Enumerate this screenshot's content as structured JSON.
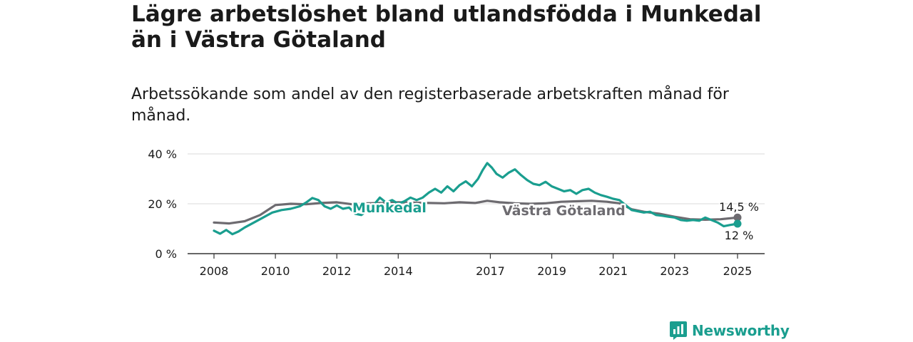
{
  "chart_data": {
    "type": "line",
    "title": "Lägre arbetslöshet bland utlandsfödda i Munkedal än i Västra Götaland",
    "subtitle": "Arbetssökande som andel av den registerbaserade arbetskraften månad för månad.",
    "y_unit": "%",
    "ylim": [
      0,
      40
    ],
    "y_ticks": [
      0,
      20,
      40
    ],
    "y_tick_labels": [
      "0 %",
      "20 %",
      "40 %"
    ],
    "xlim": [
      2008.0,
      2025.5
    ],
    "x_ticks": [
      2008,
      2010,
      2012,
      2014,
      2017,
      2019,
      2021,
      2023,
      2025
    ],
    "x_tick_labels": [
      "2008",
      "2010",
      "2012",
      "2014",
      "2017",
      "2019",
      "2021",
      "2023",
      "2025"
    ],
    "grid": "horizontal",
    "series": [
      {
        "name": "Västra Götaland",
        "color": "#6d6b70",
        "end_label": "14,5 %",
        "points": [
          [
            2008.0,
            12.5
          ],
          [
            2008.5,
            12.1
          ],
          [
            2009.0,
            13.0
          ],
          [
            2009.5,
            15.5
          ],
          [
            2010.0,
            19.5
          ],
          [
            2010.5,
            20.0
          ],
          [
            2011.0,
            19.8
          ],
          [
            2011.5,
            20.3
          ],
          [
            2012.0,
            20.6
          ],
          [
            2012.5,
            19.8
          ],
          [
            2013.0,
            20.2
          ],
          [
            2013.5,
            20.3
          ],
          [
            2014.0,
            20.6
          ],
          [
            2014.5,
            20.5
          ],
          [
            2015.0,
            20.3
          ],
          [
            2015.5,
            20.2
          ],
          [
            2016.0,
            20.6
          ],
          [
            2016.5,
            20.3
          ],
          [
            2016.9,
            21.2
          ],
          [
            2017.3,
            20.6
          ],
          [
            2017.8,
            20.2
          ],
          [
            2018.3,
            20.0
          ],
          [
            2018.8,
            20.2
          ],
          [
            2019.3,
            20.8
          ],
          [
            2019.8,
            21.0
          ],
          [
            2020.3,
            21.2
          ],
          [
            2020.8,
            20.8
          ],
          [
            2021.2,
            20.2
          ],
          [
            2021.6,
            17.8
          ],
          [
            2022.0,
            16.8
          ],
          [
            2022.5,
            16.0
          ],
          [
            2023.0,
            14.8
          ],
          [
            2023.5,
            13.8
          ],
          [
            2024.0,
            13.6
          ],
          [
            2024.5,
            13.8
          ],
          [
            2025.05,
            14.5
          ]
        ]
      },
      {
        "name": "Munkedal",
        "color": "#1a9e8f",
        "end_label": "12 %",
        "points": [
          [
            2008.0,
            9.2
          ],
          [
            2008.2,
            8.0
          ],
          [
            2008.4,
            9.5
          ],
          [
            2008.6,
            7.8
          ],
          [
            2008.8,
            8.9
          ],
          [
            2009.0,
            10.5
          ],
          [
            2009.3,
            12.5
          ],
          [
            2009.6,
            14.5
          ],
          [
            2009.9,
            16.5
          ],
          [
            2010.2,
            17.5
          ],
          [
            2010.5,
            18.0
          ],
          [
            2010.8,
            19.0
          ],
          [
            2011.0,
            20.5
          ],
          [
            2011.2,
            22.3
          ],
          [
            2011.4,
            21.5
          ],
          [
            2011.6,
            19.0
          ],
          [
            2011.8,
            18.0
          ],
          [
            2012.0,
            19.3
          ],
          [
            2012.2,
            18.0
          ],
          [
            2012.4,
            18.5
          ],
          [
            2012.6,
            16.0
          ],
          [
            2012.8,
            15.5
          ],
          [
            2013.0,
            17.5
          ],
          [
            2013.2,
            19.5
          ],
          [
            2013.4,
            22.5
          ],
          [
            2013.6,
            20.5
          ],
          [
            2013.8,
            21.5
          ],
          [
            2014.0,
            20.0
          ],
          [
            2014.2,
            21.0
          ],
          [
            2014.4,
            22.5
          ],
          [
            2014.6,
            21.5
          ],
          [
            2014.8,
            22.5
          ],
          [
            2015.0,
            24.5
          ],
          [
            2015.2,
            26.0
          ],
          [
            2015.4,
            24.5
          ],
          [
            2015.6,
            27.0
          ],
          [
            2015.8,
            25.0
          ],
          [
            2016.0,
            27.5
          ],
          [
            2016.2,
            29.0
          ],
          [
            2016.4,
            27.0
          ],
          [
            2016.6,
            30.0
          ],
          [
            2016.75,
            33.5
          ],
          [
            2016.9,
            36.3
          ],
          [
            2017.05,
            34.5
          ],
          [
            2017.2,
            32.0
          ],
          [
            2017.4,
            30.5
          ],
          [
            2017.6,
            32.5
          ],
          [
            2017.8,
            33.8
          ],
          [
            2018.0,
            31.5
          ],
          [
            2018.2,
            29.5
          ],
          [
            2018.4,
            28.0
          ],
          [
            2018.6,
            27.5
          ],
          [
            2018.8,
            28.8
          ],
          [
            2019.0,
            27.0
          ],
          [
            2019.2,
            26.0
          ],
          [
            2019.4,
            25.0
          ],
          [
            2019.6,
            25.5
          ],
          [
            2019.8,
            24.0
          ],
          [
            2020.0,
            25.5
          ],
          [
            2020.2,
            26.0
          ],
          [
            2020.4,
            24.5
          ],
          [
            2020.6,
            23.5
          ],
          [
            2020.8,
            22.8
          ],
          [
            2021.0,
            22.0
          ],
          [
            2021.2,
            21.5
          ],
          [
            2021.4,
            19.5
          ],
          [
            2021.6,
            17.5
          ],
          [
            2021.8,
            17.0
          ],
          [
            2022.0,
            16.5
          ],
          [
            2022.2,
            16.8
          ],
          [
            2022.4,
            15.5
          ],
          [
            2022.6,
            15.2
          ],
          [
            2022.8,
            14.8
          ],
          [
            2023.0,
            14.5
          ],
          [
            2023.2,
            13.5
          ],
          [
            2023.4,
            13.2
          ],
          [
            2023.6,
            13.5
          ],
          [
            2023.8,
            13.2
          ],
          [
            2024.0,
            14.5
          ],
          [
            2024.2,
            13.5
          ],
          [
            2024.4,
            12.5
          ],
          [
            2024.6,
            11.0
          ],
          [
            2024.8,
            11.5
          ],
          [
            2025.05,
            12.0
          ]
        ]
      }
    ]
  },
  "brand": {
    "name": "Newsworthy",
    "icon": "newsworthy-logo-icon",
    "color": "#1a9e8f"
  }
}
